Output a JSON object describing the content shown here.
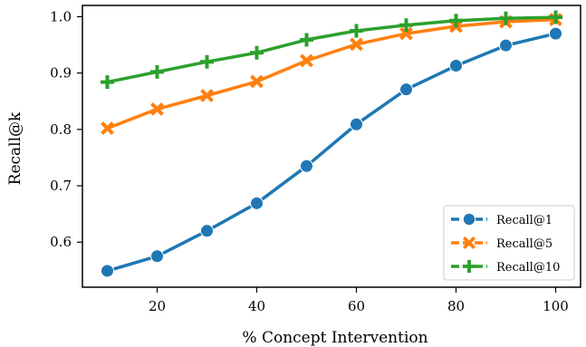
{
  "chart_data": {
    "type": "line",
    "title": "",
    "xlabel": "% Concept Intervention",
    "ylabel": "Recall@k",
    "x": [
      10,
      20,
      30,
      40,
      50,
      60,
      70,
      80,
      90,
      100
    ],
    "xlim": [
      5,
      105
    ],
    "ylim": [
      0.52,
      1.02
    ],
    "xticks": [
      20,
      40,
      60,
      80,
      100
    ],
    "yticks": [
      0.6,
      0.7,
      0.8,
      0.9,
      1.0
    ],
    "ytick_labels": [
      "0.6",
      "0.7",
      "0.8",
      "0.9",
      "1.0"
    ],
    "grid": false,
    "legend_position": "bottom-right",
    "series": [
      {
        "name": "Recall@1",
        "color": "#1f77b4",
        "marker": "circle",
        "values": [
          0.549,
          0.575,
          0.62,
          0.669,
          0.735,
          0.809,
          0.871,
          0.913,
          0.949,
          0.97
        ]
      },
      {
        "name": "Recall@5",
        "color": "#ff7f0e",
        "marker": "x",
        "values": [
          0.802,
          0.836,
          0.86,
          0.885,
          0.922,
          0.951,
          0.97,
          0.983,
          0.991,
          0.995
        ]
      },
      {
        "name": "Recall@10",
        "color": "#2ca02c",
        "marker": "plus",
        "values": [
          0.884,
          0.902,
          0.92,
          0.936,
          0.959,
          0.975,
          0.985,
          0.993,
          0.997,
          0.999
        ]
      }
    ]
  }
}
